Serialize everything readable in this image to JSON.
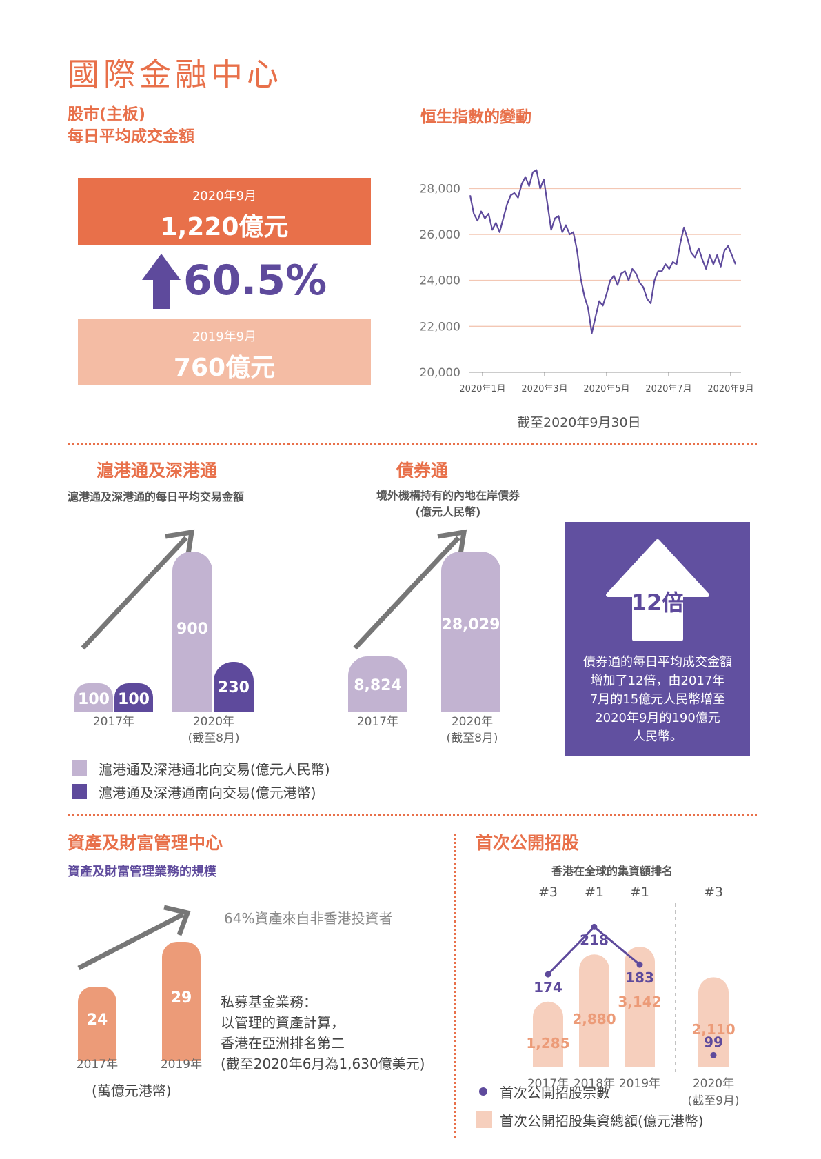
{
  "page_title": "國際金融中心",
  "stock": {
    "title_line1": "股市(主板)",
    "title_line2": "每日平均成交金額",
    "box2020_date": "2020年9月",
    "box2020_value": "1,220億元",
    "growth": "60.5%",
    "box2019_date": "2019年9月",
    "box2019_value": "760億元"
  },
  "hsi": {
    "title": "恒生指數的變動",
    "note": "截至2020年9月30日"
  },
  "connect": {
    "title": "滬港通及深港通",
    "subtitle": "滬港通及深港通的每日平均交易金額",
    "north_2017": "100",
    "south_2017": "100",
    "north_2020": "900",
    "south_2020": "230",
    "cat_2017": "2017年",
    "cat_2020": "2020年",
    "cat_2020_note": "(截至8月)"
  },
  "bond": {
    "title": "債券通",
    "subtitle_line1": "境外機構持有的內地在岸債券",
    "subtitle_line2": "(億元人民幣)",
    "v2017": "8,824",
    "v2020": "28,029",
    "cat_2017": "2017年",
    "cat_2020": "2020年",
    "cat_2020_note": "(截至8月)"
  },
  "times_box": {
    "multiple": "12倍",
    "desc_lines": [
      "債券通的每日平均成交金額",
      "增加了12倍，由2017年",
      "7月的15億元人民幣增至",
      "2020年9月的190億元",
      "人民幣。"
    ]
  },
  "legend": {
    "north": "滬港通及深港通北向交易(億元人民幣)",
    "south": "滬港通及深港通南向交易(億元港幣)"
  },
  "wealth": {
    "title": "資產及財富管理中心",
    "subtitle": "資產及財富管理業務的規模",
    "note": "64%資產來自非香港投資者",
    "v2017": "24",
    "v2019": "29",
    "cat_2017": "2017年",
    "cat_2019": "2019年",
    "unit": "(萬億元港幣)",
    "pe_lines": [
      "私募基金業務：",
      "以管理的資產計算，",
      "香港在亞洲排名第二",
      "(截至2020年6月為1,630億美元)"
    ]
  },
  "ipo": {
    "title": "首次公開招股",
    "subtitle": "香港在全球的集資額排名",
    "legend_count": "首次公開招股宗數",
    "legend_funds": "首次公開招股集資總額(億元港幣)"
  },
  "colors": {
    "orange": "#e8704a",
    "light_orange": "#f4bca4",
    "purple": "#5e4a9c",
    "light_purple": "#c2b3d1",
    "peach": "#f6cfbd",
    "wealth_bar": "#ec9b78"
  },
  "chart_data": [
    {
      "type": "line",
      "title": "恒生指數的變動",
      "ylim": [
        20000,
        29000
      ],
      "yticks": [
        "20,000",
        "22,000",
        "24,000",
        "26,000",
        "28,000"
      ],
      "xticks": [
        "2020年1月",
        "2020年3月",
        "2020年5月",
        "2020年7月",
        "2020年9月"
      ],
      "grid": true,
      "series": [
        {
          "values": [
            27700,
            26900,
            26600,
            27000,
            26700,
            26900,
            26200,
            26500,
            26100,
            26700,
            27300,
            27700,
            27800,
            27600,
            28200,
            28500,
            28100,
            28700,
            28800,
            28000,
            28400,
            27300,
            26200,
            26700,
            26800,
            26100,
            26400,
            26000,
            26100,
            25300,
            24100,
            23300,
            22800,
            21700,
            22400,
            23100,
            22900,
            23400,
            24000,
            24200,
            23800,
            24300,
            24400,
            24000,
            24500,
            24300,
            23900,
            23700,
            23200,
            23000,
            24000,
            24400,
            24400,
            24700,
            24500,
            24800,
            24700,
            25600,
            26300,
            25800,
            25200,
            25000,
            25400,
            24900,
            24500,
            25100,
            24700,
            25100,
            24600,
            25300,
            25500,
            25100,
            24700
          ]
        }
      ]
    },
    {
      "type": "bar",
      "title": "滬港通及深港通",
      "categories": [
        "2017年",
        "2020年(截至8月)"
      ],
      "series": [
        {
          "name": "滬港通及深港通北向交易(億元人民幣)",
          "values": [
            100,
            900
          ]
        },
        {
          "name": "滬港通及深港通南向交易(億元港幣)",
          "values": [
            100,
            230
          ]
        }
      ]
    },
    {
      "type": "bar",
      "title": "債券通",
      "categories": [
        "2017年",
        "2020年(截至8月)"
      ],
      "values": [
        8824,
        28029
      ]
    },
    {
      "type": "bar",
      "title": "資產及財富管理業務的規模",
      "categories": [
        "2017年",
        "2019年"
      ],
      "values": [
        24,
        29
      ]
    },
    {
      "type": "bar",
      "title": "香港在全球的集資額排名",
      "categories": [
        "2017年",
        "2018年",
        "2019年",
        "2020年(截至9月)"
      ],
      "ranks": [
        "#3",
        "#1",
        "#1",
        "#3"
      ],
      "series": [
        {
          "name": "首次公開招股集資總額(億元港幣)",
          "values": [
            1285,
            2880,
            3142,
            2110
          ],
          "labels": [
            "1,285",
            "2,880",
            "3,142",
            "2,110"
          ]
        },
        {
          "name": "首次公開招股宗數",
          "values": [
            174,
            218,
            183,
            99
          ],
          "labels": [
            "174",
            "218",
            "183",
            "99"
          ]
        }
      ]
    }
  ]
}
